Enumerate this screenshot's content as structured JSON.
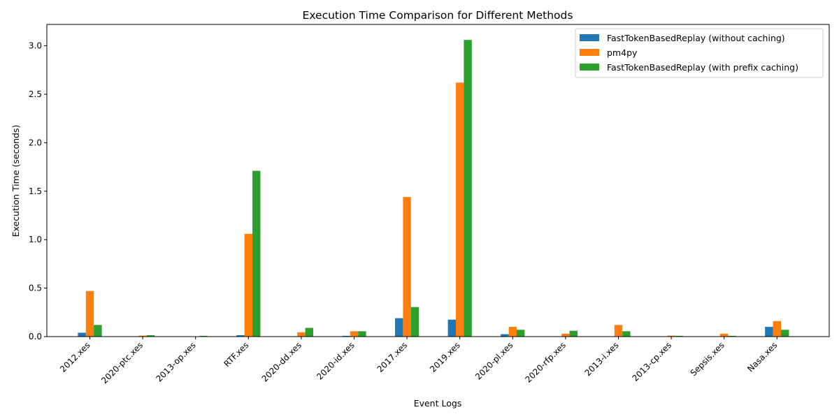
{
  "chart_data": {
    "type": "bar",
    "title": "Execution Time Comparison for Different Methods",
    "xlabel": "Event Logs",
    "ylabel": "Execution Time (seconds)",
    "ylim": [
      0,
      3.22
    ],
    "yticks": [
      "0.0",
      "0.5",
      "1.0",
      "1.5",
      "2.0",
      "2.5",
      "3.0"
    ],
    "ytick_values": [
      0,
      0.5,
      1.0,
      1.5,
      2.0,
      2.5,
      3.0
    ],
    "grid": false,
    "legend_position": "top-right",
    "categories": [
      "2012.xes",
      "2020-ptc.xes",
      "2013-op.xes",
      "RTF.xes",
      "2020-dd.xes",
      "2020-id.xes",
      "2017.xes",
      "2019.xes",
      "2020-pl.xes",
      "2020-rfp.xes",
      "2013-i.xes",
      "2013-cp.xes",
      "Sepsis.xes",
      "Nasa.xes"
    ],
    "series": [
      {
        "name": "FastTokenBasedReplay (without caching)",
        "color": "#1f77b4",
        "values": [
          0.04,
          0.002,
          0.001,
          0.015,
          0.003,
          0.008,
          0.19,
          0.175,
          0.025,
          0.004,
          0.003,
          0.002,
          0.003,
          0.1
        ]
      },
      {
        "name": "pm4py",
        "color": "#ff7f0e",
        "values": [
          0.47,
          0.01,
          0.002,
          1.06,
          0.045,
          0.055,
          1.44,
          2.62,
          0.1,
          0.03,
          0.12,
          0.01,
          0.03,
          0.16
        ]
      },
      {
        "name": "FastTokenBasedReplay (with prefix caching)",
        "color": "#2ca02c",
        "values": [
          0.12,
          0.015,
          0.008,
          1.71,
          0.09,
          0.055,
          0.305,
          3.06,
          0.07,
          0.06,
          0.055,
          0.008,
          0.008,
          0.07
        ]
      }
    ]
  }
}
